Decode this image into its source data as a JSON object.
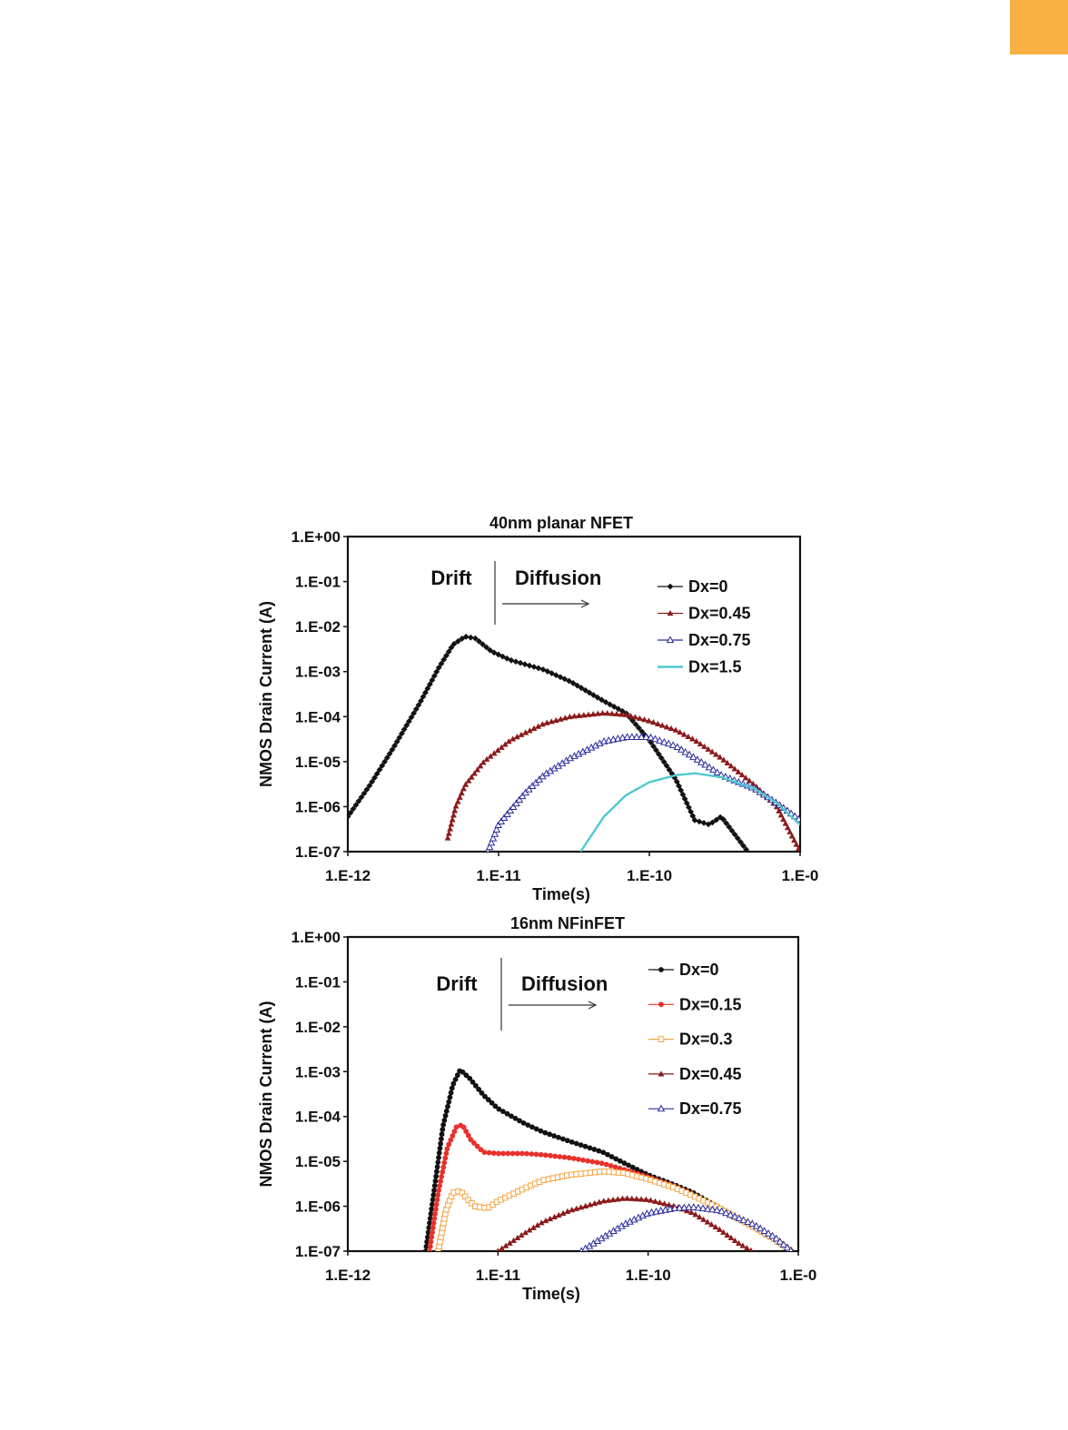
{
  "page": {
    "tab_color": "#f8b142"
  },
  "chart_data": [
    {
      "type": "line",
      "title": "40nm planar NFET",
      "xlabel": "Time(s)",
      "ylabel": "NMOS Drain Current (A)",
      "x_scale": "log",
      "y_scale": "log",
      "xlim": [
        1e-12,
        1e-09
      ],
      "ylim": [
        1e-07,
        1
      ],
      "x_ticks": [
        "1.E-12",
        "1.E-11",
        "1.E-10",
        "1.E-0"
      ],
      "y_ticks": [
        "1.E+00",
        "1.E-01",
        "1.E-02",
        "1.E-03",
        "1.E-04",
        "1.E-05",
        "1.E-06",
        "1.E-07"
      ],
      "annotations": [
        "Drift",
        "Diffusion"
      ],
      "legend_position": "top-right",
      "series": [
        {
          "name": "Dx=0",
          "color": "#111111",
          "marker": "diamond",
          "x": [
            1e-12,
            1.4e-12,
            2e-12,
            3e-12,
            4e-12,
            5e-12,
            6e-12,
            7e-12,
            9e-12,
            1.2e-11,
            2e-11,
            3e-11,
            5e-11,
            7e-11,
            1e-10,
            1.5e-10,
            2e-10,
            2.5e-10,
            3e-10,
            4.5e-10
          ],
          "y": [
            6e-07,
            3e-06,
            2e-05,
            0.0002,
            0.0012,
            0.004,
            0.006,
            0.0055,
            0.0028,
            0.0018,
            0.0011,
            0.0006,
            0.00022,
            0.00012,
            3e-05,
            4e-06,
            5e-07,
            4e-07,
            6e-07,
            1e-07
          ]
        },
        {
          "name": "Dx=0.45",
          "color": "#8b1a1a",
          "marker": "triangle-filled",
          "x": [
            4.6e-12,
            5.2e-12,
            6e-12,
            8e-12,
            1.2e-11,
            2e-11,
            3e-11,
            5e-11,
            7e-11,
            1e-10,
            1.5e-10,
            2e-10,
            3e-10,
            5e-10,
            7e-10,
            1e-09
          ],
          "y": [
            2e-07,
            1e-06,
            3e-06,
            1e-05,
            3e-05,
            7e-05,
            0.0001,
            0.00012,
            0.00011,
            8e-05,
            5e-05,
            3e-05,
            1.2e-05,
            3e-06,
            1e-06,
            1e-07
          ]
        },
        {
          "name": "Dx=0.75",
          "color": "#2b2b9e",
          "marker": "triangle-open",
          "x": [
            8.5e-12,
            1e-11,
            1.5e-11,
            2e-11,
            3e-11,
            5e-11,
            7e-11,
            1e-10,
            1.5e-10,
            2e-10,
            3e-10,
            5e-10,
            7e-10,
            1e-09
          ],
          "y": [
            1e-07,
            4e-07,
            2e-06,
            5e-06,
            1.2e-05,
            2.8e-05,
            3.5e-05,
            3.5e-05,
            2.2e-05,
            1.2e-05,
            5e-06,
            2.5e-06,
            1.2e-06,
            5e-07
          ]
        },
        {
          "name": "Dx=1.5",
          "color": "#4fc8cf",
          "marker": "none",
          "x": [
            3.5e-11,
            5e-11,
            7e-11,
            1e-10,
            1.5e-10,
            2e-10,
            3e-10,
            5e-10,
            7e-10,
            1e-09
          ],
          "y": [
            1e-07,
            6e-07,
            1.8e-06,
            3.5e-06,
            5e-06,
            5.5e-06,
            4.5e-06,
            2.5e-06,
            1.2e-06,
            4e-07
          ]
        }
      ]
    },
    {
      "type": "line",
      "title": "16nm NFinFET",
      "xlabel": "Time(s)",
      "ylabel": "NMOS Drain Current (A)",
      "x_scale": "log",
      "y_scale": "log",
      "xlim": [
        1e-12,
        1e-09
      ],
      "ylim": [
        1e-07,
        1
      ],
      "x_ticks": [
        "1.E-12",
        "1.E-11",
        "1.E-10",
        "1.E-0"
      ],
      "y_ticks": [
        "1.E+00",
        "1.E-01",
        "1.E-02",
        "1.E-03",
        "1.E-04",
        "1.E-05",
        "1.E-06",
        "1.E-07"
      ],
      "annotations": [
        "Drift",
        "Diffusion"
      ],
      "legend_position": "top-right",
      "series": [
        {
          "name": "Dx=0",
          "color": "#111111",
          "marker": "circle-filled",
          "x": [
            3.3e-12,
            3.8e-12,
            4.3e-12,
            5e-12,
            5.6e-12,
            6.5e-12,
            8e-12,
            1e-11,
            1.5e-11,
            2e-11,
            3e-11,
            5e-11,
            7e-11,
            1e-10,
            1.5e-10,
            2e-10,
            3e-10,
            5e-10,
            7e-10,
            9e-10
          ],
          "y": [
            1e-07,
            3e-06,
            6e-05,
            0.0005,
            0.0011,
            0.0007,
            0.0003,
            0.00015,
            7e-05,
            4.5e-05,
            2.8e-05,
            1.6e-05,
            9e-06,
            5e-06,
            3e-06,
            2e-06,
            9e-07,
            3.5e-07,
            1.8e-07,
            1e-07
          ]
        },
        {
          "name": "Dx=0.15",
          "color": "#e8302a",
          "marker": "circle-filled",
          "x": [
            3.5e-12,
            4e-12,
            4.6e-12,
            5.3e-12,
            5.8e-12,
            6.6e-12,
            8e-12,
            1e-11,
            1.5e-11,
            2e-11,
            3e-11,
            5e-11,
            7e-11,
            1e-10,
            1.5e-10,
            2e-10,
            3e-10,
            5e-10,
            7e-10,
            9e-10
          ],
          "y": [
            1e-07,
            2e-06,
            2e-05,
            6e-05,
            6.5e-05,
            3e-05,
            1.6e-05,
            1.5e-05,
            1.5e-05,
            1.4e-05,
            1.2e-05,
            9e-06,
            6.5e-06,
            4.5e-06,
            2.8e-06,
            1.8e-06,
            9e-07,
            3.5e-07,
            1.8e-07,
            1e-07
          ]
        },
        {
          "name": "Dx=0.3",
          "color": "#f5a442",
          "marker": "square-open",
          "x": [
            4e-12,
            4.5e-12,
            5e-12,
            5.6e-12,
            6.2e-12,
            7e-12,
            8.5e-12,
            1e-11,
            1.5e-11,
            2e-11,
            3e-11,
            5e-11,
            7e-11,
            1e-10,
            1.5e-10,
            2e-10,
            3e-10,
            5e-10,
            7e-10,
            9e-10
          ],
          "y": [
            1e-07,
            8e-07,
            2e-06,
            2.2e-06,
            1.5e-06,
            1e-06,
            9e-07,
            1.3e-06,
            2.5e-06,
            3.8e-06,
            5e-06,
            6e-06,
            5.5e-06,
            4e-06,
            2.6e-06,
            1.7e-06,
            9e-07,
            3.5e-07,
            1.8e-07,
            1e-07
          ]
        },
        {
          "name": "Dx=0.45",
          "color": "#8b1a1a",
          "marker": "triangle-filled",
          "x": [
            1e-11,
            1.5e-11,
            2e-11,
            3e-11,
            5e-11,
            7e-11,
            1e-10,
            1.5e-10,
            2e-10,
            3e-10,
            4e-10,
            5.5e-10
          ],
          "y": [
            1e-07,
            2.5e-07,
            4.5e-07,
            8e-07,
            1.3e-06,
            1.5e-06,
            1.4e-06,
            1e-06,
            7e-07,
            3e-07,
            1.5e-07,
            8e-08
          ]
        },
        {
          "name": "Dx=0.75",
          "color": "#2b2b9e",
          "marker": "triangle-open",
          "x": [
            3.6e-11,
            5e-11,
            7e-11,
            1e-10,
            1.5e-10,
            2e-10,
            3e-10,
            5e-10,
            7e-10,
            9e-10
          ],
          "y": [
            1e-07,
            2e-07,
            4e-07,
            7e-07,
            9e-07,
            9.5e-07,
            8e-07,
            4e-07,
            2e-07,
            1e-07
          ]
        }
      ]
    }
  ]
}
